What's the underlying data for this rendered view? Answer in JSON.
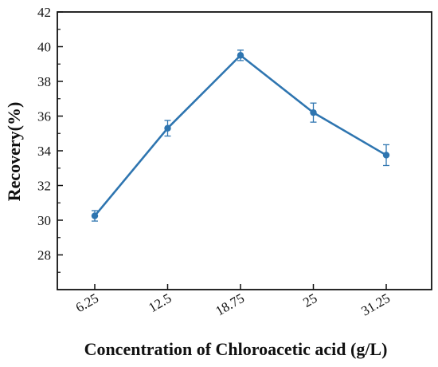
{
  "chart_data": {
    "type": "line",
    "title": "",
    "xlabel": "Concentration of Chloroacetic acid (g/L)",
    "ylabel": "Recovery(%)",
    "categories": [
      "6.25",
      "12.5",
      "18.75",
      "25",
      "31.25"
    ],
    "series": [
      {
        "values": [
          30.25,
          35.3,
          39.5,
          36.2,
          33.75
        ],
        "errors": [
          0.3,
          0.45,
          0.3,
          0.55,
          0.6
        ],
        "color": "#2e75b0"
      }
    ],
    "ylim": [
      26,
      42
    ],
    "yticks": [
      28,
      30,
      32,
      34,
      36,
      38,
      40,
      42
    ],
    "grid": false,
    "legend": "none"
  }
}
